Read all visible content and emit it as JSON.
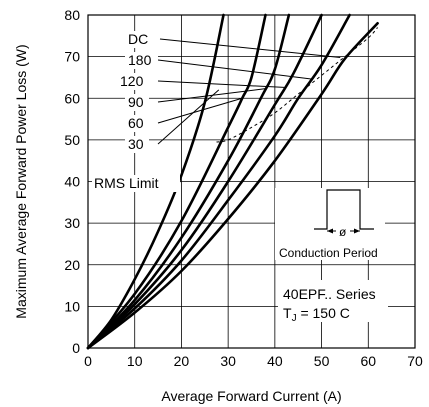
{
  "chart_data": {
    "type": "line",
    "title": "",
    "xlabel": "Average Forward Current (A)",
    "ylabel": "Maximum Average Forward Power Loss (W)",
    "xlim": [
      0,
      70
    ],
    "ylim": [
      0,
      80
    ],
    "xticks": [
      0,
      10,
      20,
      30,
      40,
      50,
      60,
      70
    ],
    "yticks": [
      0,
      10,
      20,
      30,
      40,
      50,
      60,
      70,
      80
    ],
    "grid": true,
    "series": [
      {
        "name": "DC",
        "x": [
          0,
          10,
          20,
          30,
          40,
          50,
          55,
          62
        ],
        "y": [
          0,
          8.5,
          18.5,
          31,
          45,
          61,
          69.5,
          78
        ]
      },
      {
        "name": "180",
        "x": [
          0,
          10,
          20,
          30,
          40,
          45,
          50,
          56
        ],
        "y": [
          0,
          9.5,
          21,
          35.5,
          51,
          60,
          68,
          80
        ]
      },
      {
        "name": "120",
        "x": [
          0,
          10,
          20,
          30,
          40,
          44,
          50
        ],
        "y": [
          0,
          10.5,
          23.5,
          40,
          58.5,
          66,
          80
        ]
      },
      {
        "name": "90",
        "x": [
          0,
          10,
          20,
          30,
          37,
          40,
          43
        ],
        "y": [
          0,
          11.5,
          26.5,
          45,
          60,
          67,
          80
        ]
      },
      {
        "name": "60",
        "x": [
          0,
          10,
          20,
          30,
          33,
          35,
          38
        ],
        "y": [
          0,
          13,
          30.5,
          53,
          60,
          65,
          80
        ]
      },
      {
        "name": "30",
        "x": [
          0,
          5,
          10,
          15,
          20,
          25,
          29
        ],
        "y": [
          0,
          6.8,
          16.5,
          28,
          41.5,
          59,
          80
        ]
      }
    ],
    "rms_limit": {
      "label": "RMS Limit",
      "x": [
        27.5,
        30,
        35,
        40,
        45,
        50,
        55,
        60,
        62
      ],
      "y": [
        49.5,
        50,
        53,
        56.5,
        61,
        65.5,
        70,
        74.5,
        77
      ]
    },
    "annotations": {
      "conduction_period": "Conduction Period",
      "phi_symbol": "ø",
      "series_name": "40EPF.. Series",
      "tj_prefix": "T",
      "tj_sub": "J",
      "tj_value": " = 150 C"
    }
  }
}
